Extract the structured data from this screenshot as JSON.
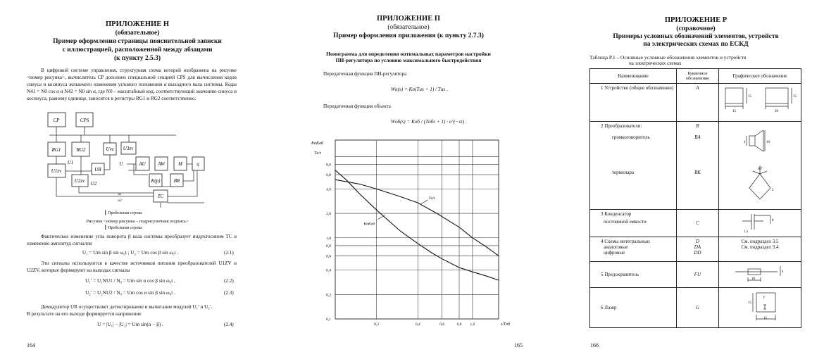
{
  "page1": {
    "title": "ПРИЛОЖЕНИЕ Н",
    "subtitle": "(обязательное)",
    "heading": [
      "Пример оформления страницы пояснительной записки",
      "с иллюстрацией, расположенной между абзацами",
      "(к пункту 2.5.3)"
    ],
    "para1": "В цифровой системе управления, структурная схема которой изображена на рисунке <номер рисунка>, вычислитель CP дополнен специальной секцией CPS для вычисления кодов синуса и косинуса желаемого изменения углового положения α выходного вала системы. Коды N41 = N0 cos α и N42 = N0 sin α, где N0 – масштабный код, соответствующий значению синуса и косинуса, равному единице, заносятся в регистры RG1 и RG2 соответственно.",
    "blocks": {
      "cp": "CP",
      "cps": "CPS",
      "rg1": "RG1",
      "rg2": "RG2",
      "uvz": "Uvz",
      "u3zv": "U3zv",
      "u1zv": "U1zv",
      "ur": "UR",
      "u2zv": "U2zv",
      "au": "AU",
      "aw": "AW",
      "m": "M",
      "q": "q",
      "kp": "K(p)",
      "br": "BR",
      "tc": "TC",
      "u1": "U1",
      "u2": "U2",
      "u": "U",
      "um1": "u1",
      "um2": "u2"
    },
    "blank_line": "Пробельная строка",
    "caption": "Рисунок <номер рисунка – подрисуночная подпись>",
    "para2": "Фактическое изменение угла поворота β вала системы преобразует индуктосином TC в изменение амплитуд сигналов",
    "eq1": "U₁ = Um sin β sin ω₀t ;  U₂ = Um cos β sin ω₀t .",
    "eq1_num": "(2.1)",
    "para3": "Эти сигналы используются в качестве источников питания преобразователей U1ZV и U2ZV, которые формируют на выходах сигналы",
    "eq2": "U₁′ = U₁NU1 / N₀ = Um sin α cos β sin ω₀t ,",
    "eq2_num": "(2.2)",
    "eq3": "U₂′ = U₂NU2 / N₀ = Um cos α sin β sin ω₀t .",
    "eq3_num": "(2.3)",
    "para4": "Демодулятор UR осуществляет детектирование и вычитание модулей U₁′ и U₂′.",
    "para5": "В результате на его выходе формируется напряжение",
    "eq4": "U = |U₁| − |U₂| = Um sin(α − β) .",
    "eq4_num": "(2.4)",
    "page_number": "164"
  },
  "page2": {
    "title": "ПРИЛОЖЕНИЕ П",
    "subtitle": "(обязательное)",
    "heading": "Пример оформления приложения (к пункту 2.7.3)",
    "nomogram_title": [
      "Номограмма для определения оптимальных параметров настройки",
      "ПИ-регулятора по условию максимального быстродействия"
    ],
    "text1": "Передаточная функция ПИ-регулятора",
    "formula1": "Wп(s) = Kп(Tиs + 1) / Tиs ,",
    "text2": "Передаточная функция объекта",
    "formula2": "Wоб(s) = Kоб / (Tобs + 1) · e^(−sτ) .",
    "page_number": "165"
  },
  "chart_data": {
    "type": "line",
    "xscale": "log",
    "yscale": "log",
    "ylabel": [
      "KпKоб",
      "Tи/τ"
    ],
    "xlabel": "τ/Tоб",
    "xlim": [
      0.1,
      1.55
    ],
    "ylim": [
      0.1,
      16
    ],
    "grid": true,
    "xticks": [
      {
        "v": 0.2,
        "l": "0,2"
      },
      {
        "v": 0.4,
        "l": "0,4"
      },
      {
        "v": 0.6,
        "l": "0,6"
      },
      {
        "v": 0.8,
        "l": "0,8"
      },
      {
        "v": 1.0,
        "l": "1,0"
      }
    ],
    "yticks": [
      {
        "v": 0.1,
        "l": "0,1"
      },
      {
        "v": 0.2,
        "l": "0,2"
      },
      {
        "v": 0.4,
        "l": "0,4"
      },
      {
        "v": 0.6,
        "l": "0,6"
      },
      {
        "v": 0.8,
        "l": "0,8"
      },
      {
        "v": 1.0,
        "l": "1,0"
      },
      {
        "v": 2.0,
        "l": "2,0"
      },
      {
        "v": 4.0,
        "l": "4,0"
      },
      {
        "v": 6.0,
        "l": "6,0"
      },
      {
        "v": 8.0,
        "l": "8,0"
      },
      {
        "v": 10,
        "l": ""
      }
    ],
    "series": [
      {
        "name": "Tи/τ",
        "x": [
          0.1,
          0.15,
          0.2,
          0.3,
          0.4,
          0.55,
          0.7,
          0.8,
          1.0,
          1.25,
          1.55
        ],
        "y": [
          5.2,
          4.6,
          4.0,
          3.2,
          2.7,
          2.0,
          1.55,
          1.35,
          1.0,
          0.78,
          0.6
        ]
      },
      {
        "name": "KпKоб",
        "x": [
          0.1,
          0.12,
          0.15,
          0.2,
          0.3,
          0.4,
          0.5,
          0.6,
          0.8,
          1.0,
          1.25,
          1.55
        ],
        "y": [
          6.8,
          5.2,
          3.5,
          2.2,
          1.2,
          0.85,
          0.66,
          0.55,
          0.43,
          0.38,
          0.34,
          0.3
        ]
      }
    ]
  },
  "page3": {
    "title": "ПРИЛОЖЕНИЕ Р",
    "subtitle": "(справочное)",
    "heading": [
      "Примеры условных обозначений элементов, устройств",
      "на электрических схемах по ЕСКД"
    ],
    "table_caption": [
      "Таблица Р.1 – Основные условные обозначения элементов и устройств",
      "на электрических схемах"
    ],
    "headers": [
      "Наименование",
      "Буквенное обозначение",
      "Графическое обозначение"
    ],
    "rows": [
      {
        "name": [
          "1 Устройство (общее обозначение)"
        ],
        "code": [
          "A"
        ],
        "graphic": "device",
        "dims": [
          "15",
          "15",
          "20",
          "15"
        ]
      },
      {
        "name": [
          "2 Преобразователи:",
          "громкоговоритель",
          "",
          "термопара"
        ],
        "code": [
          "B",
          "BA",
          "",
          "BK"
        ],
        "graphic": "converters",
        "dims": [
          "10",
          "4",
          "60°",
          "5"
        ]
      },
      {
        "name": [
          "3 Конденсатор",
          "постоянной емкости"
        ],
        "code": [
          "",
          "C"
        ],
        "graphic": "capacitor",
        "dims": [
          "8",
          "1,5"
        ]
      },
      {
        "name": [
          "4 Схемы интегральные:",
          "аналоговые",
          "цифровые"
        ],
        "code": [
          "D",
          "DA",
          "DD"
        ],
        "graphic_text": [
          "",
          "См. подраздел 3.5",
          "См. подраздел 3.4"
        ]
      },
      {
        "name": [
          "5 Предохранитель"
        ],
        "code": [
          "FU"
        ],
        "graphic": "fuse",
        "dims": [
          "10",
          "4"
        ]
      },
      {
        "name": [
          "6 Лазер"
        ],
        "code": [
          "G"
        ],
        "graphic": "laser",
        "dims": [
          "15",
          "15",
          "Г"
        ]
      }
    ],
    "page_number": "166"
  }
}
